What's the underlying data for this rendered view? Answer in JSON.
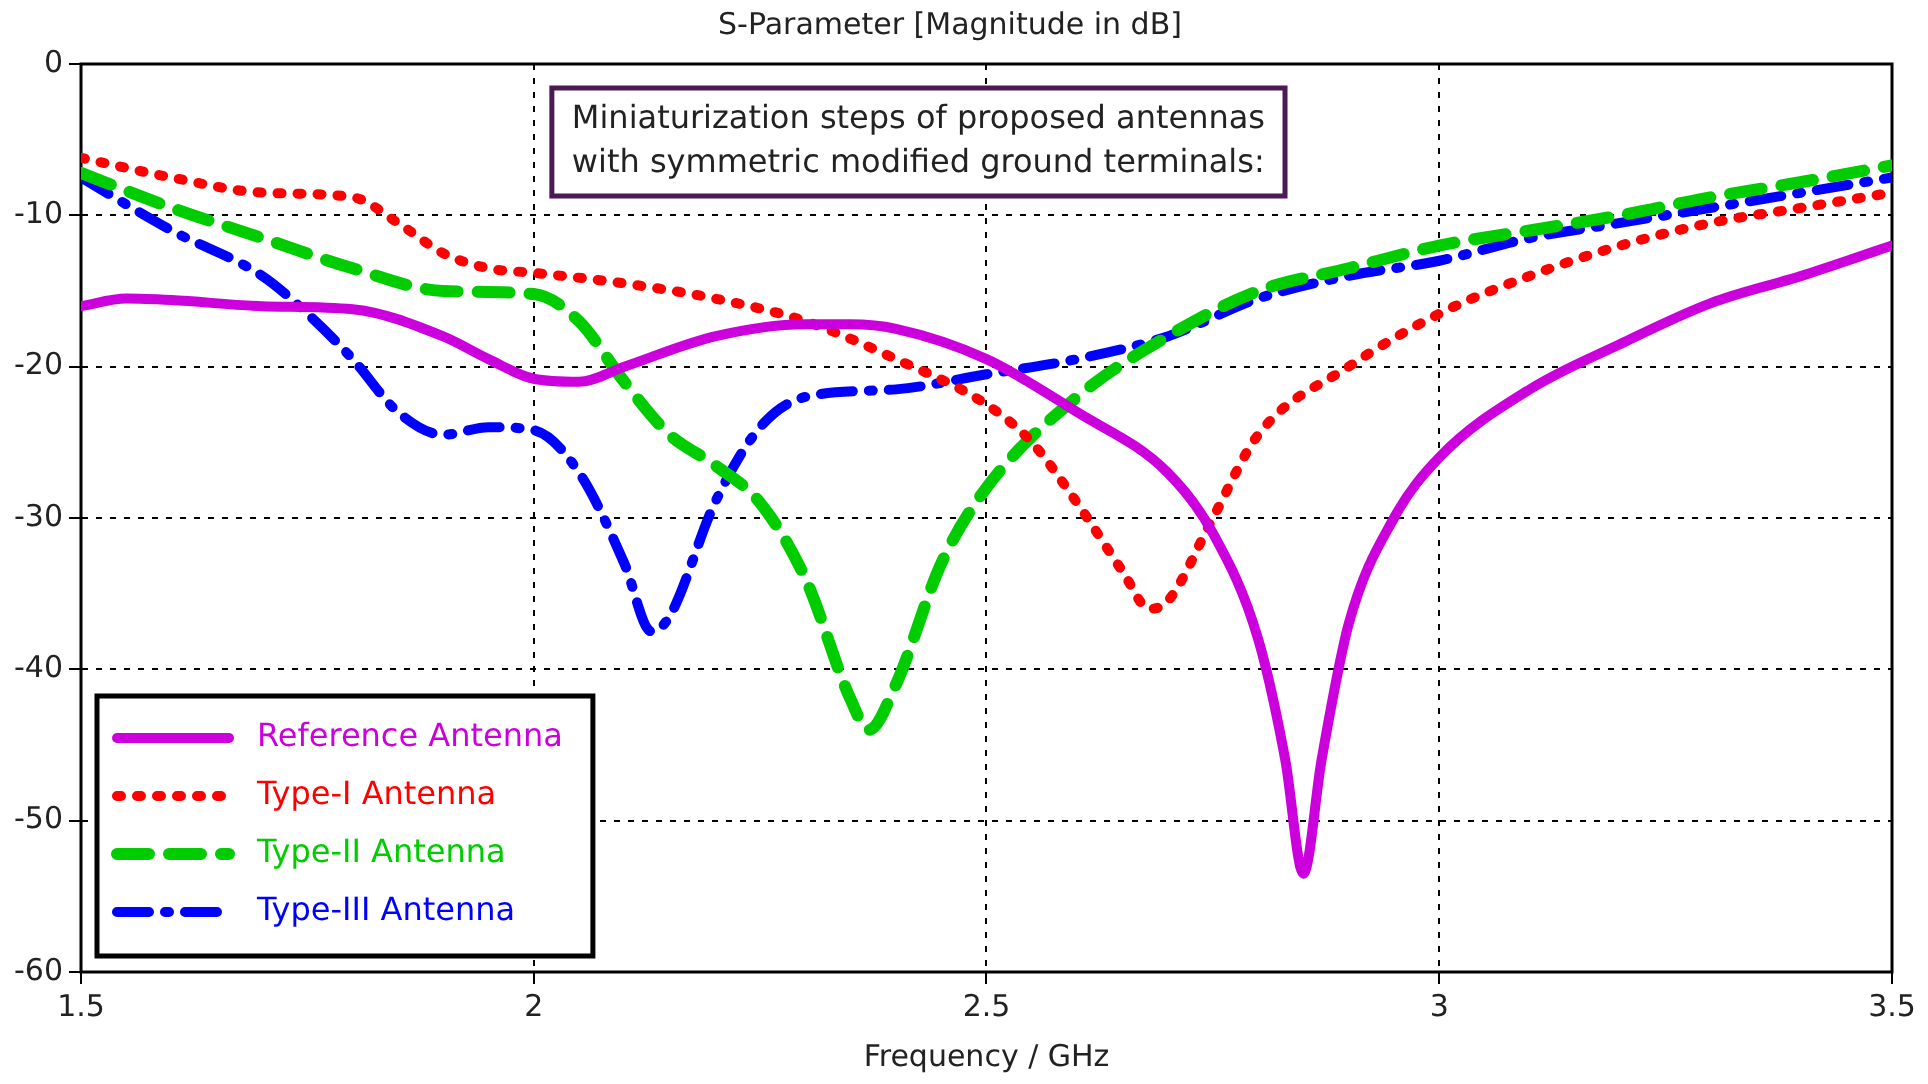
{
  "chart_data": {
    "type": "line",
    "title": "S-Parameter [Magnitude in dB]",
    "xlabel": "Frequency / GHz",
    "xlim": [
      1.5,
      3.5
    ],
    "xticks": [
      1.5,
      2,
      2.5,
      3,
      3.5
    ],
    "ylim": [
      -60,
      0
    ],
    "yticks": [
      -60,
      -50,
      -40,
      -30,
      -20,
      -10,
      0
    ],
    "grid": true,
    "legend": "bottom left",
    "marker": "none",
    "annotations": [
      "Miniaturization steps of proposed antennas\nwith symmetric modified ground terminals:"
    ],
    "series": [
      {
        "name": "Reference Antenna",
        "color": "#cc00dd",
        "line_style": "solid",
        "x": [
          1.5,
          1.55,
          1.6,
          1.7,
          1.8,
          1.9,
          1.95,
          2.0,
          2.05,
          2.1,
          2.2,
          2.3,
          2.35,
          2.4,
          2.5,
          2.6,
          2.7,
          2.75,
          2.8,
          2.83,
          2.85,
          2.87,
          2.9,
          2.95,
          3.0,
          3.1,
          3.2,
          3.3,
          3.4,
          3.5
        ],
        "values": [
          -16,
          -15.5,
          -15.6,
          -16,
          -16.2,
          -18,
          -19.5,
          -20.8,
          -21,
          -20,
          -18,
          -17.2,
          -17.2,
          -17.5,
          -19.5,
          -23,
          -27,
          -31,
          -38,
          -46,
          -53.5,
          -46,
          -37,
          -30,
          -26,
          -21.5,
          -18.5,
          -15.8,
          -14,
          -12
        ]
      },
      {
        "name": "Type-I Antenna",
        "color": "#ff0000",
        "line_style": "dotted",
        "x": [
          1.5,
          1.6,
          1.7,
          1.8,
          1.85,
          1.9,
          1.95,
          2.0,
          2.1,
          2.2,
          2.3,
          2.4,
          2.5,
          2.55,
          2.6,
          2.65,
          2.68,
          2.7,
          2.75,
          2.8,
          2.9,
          3.0,
          3.1,
          3.2,
          3.3,
          3.4,
          3.5
        ],
        "values": [
          -6.2,
          -7.5,
          -8.5,
          -8.8,
          -10.5,
          -12.5,
          -13.5,
          -13.8,
          -14.5,
          -15.5,
          -17,
          -19.5,
          -22.5,
          -25,
          -29,
          -33.5,
          -36,
          -35.5,
          -30,
          -24.5,
          -20,
          -16.5,
          -14,
          -12,
          -10.5,
          -9.5,
          -8.5
        ]
      },
      {
        "name": "Type-II Antenna",
        "color": "#00cc00",
        "line_style": "dashed",
        "x": [
          1.5,
          1.6,
          1.7,
          1.8,
          1.9,
          2.0,
          2.05,
          2.1,
          2.15,
          2.2,
          2.25,
          2.3,
          2.35,
          2.37,
          2.4,
          2.45,
          2.5,
          2.6,
          2.7,
          2.8,
          2.9,
          3.0,
          3.1,
          3.2,
          3.3,
          3.4,
          3.5
        ],
        "values": [
          -7.2,
          -9.5,
          -11.5,
          -13.5,
          -15,
          -15.2,
          -17,
          -21,
          -24.5,
          -26.5,
          -29,
          -34,
          -42,
          -44,
          -41,
          -33,
          -28,
          -22,
          -18,
          -15,
          -13.5,
          -12,
          -11,
          -10,
          -8.8,
          -7.8,
          -6.7
        ]
      },
      {
        "name": "Type-III Antenna",
        "color": "#0000ff",
        "line_style": "dashdot",
        "x": [
          1.5,
          1.6,
          1.7,
          1.75,
          1.8,
          1.85,
          1.9,
          1.95,
          2.0,
          2.05,
          2.1,
          2.13,
          2.15,
          2.2,
          2.25,
          2.3,
          2.4,
          2.5,
          2.6,
          2.7,
          2.8,
          2.9,
          3.0,
          3.1,
          3.2,
          3.3,
          3.4,
          3.5
        ],
        "values": [
          -7.5,
          -11,
          -14,
          -16.5,
          -19.5,
          -23,
          -24.5,
          -24,
          -24.2,
          -27,
          -33,
          -37.5,
          -36.5,
          -29,
          -24,
          -22,
          -21.5,
          -20.5,
          -19.5,
          -18,
          -15.5,
          -14,
          -13,
          -11.5,
          -10.5,
          -9.5,
          -8.5,
          -7.5
        ]
      }
    ]
  }
}
